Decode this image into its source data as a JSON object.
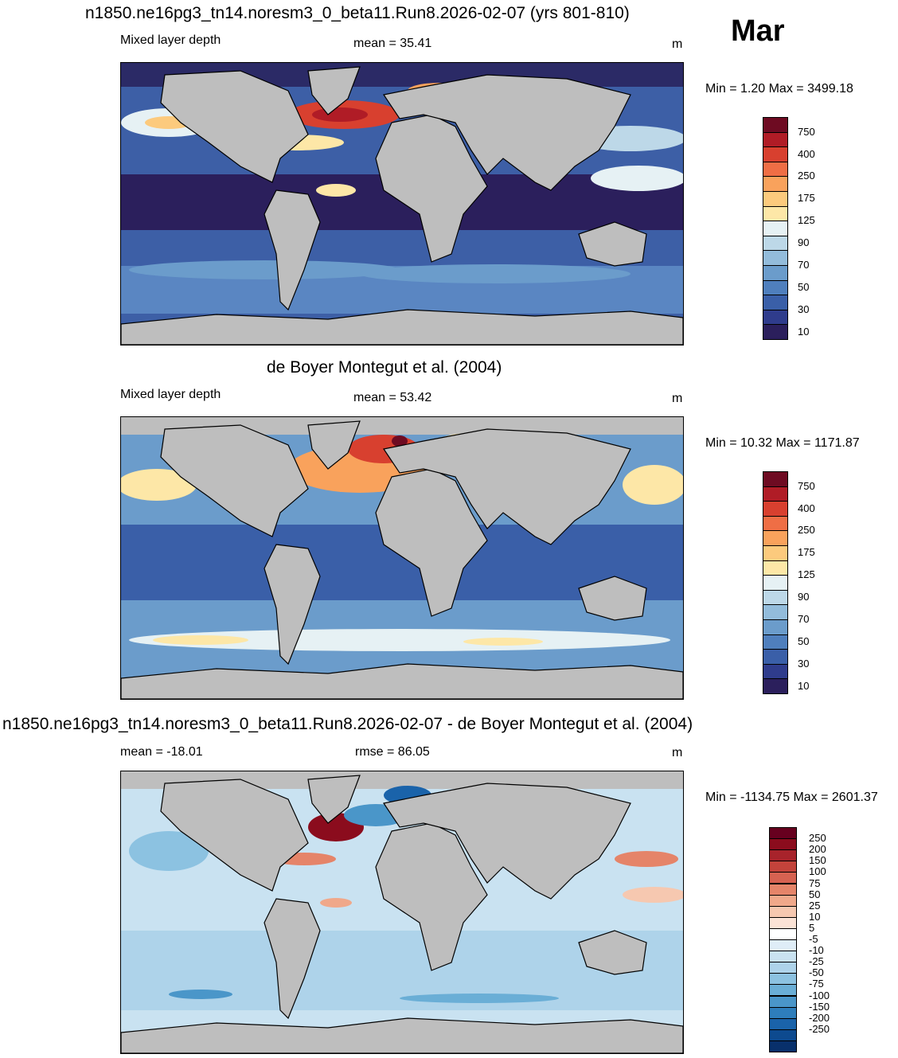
{
  "month": "Mar",
  "unit": "m",
  "panels": [
    {
      "id": "model",
      "title": "n1850.ne16pg3_tn14.noresm3_0_beta11.Run8.2026-02-07 (yrs 801-810)",
      "left_label": "Mixed layer depth",
      "center_label": "mean =  35.41",
      "right_label": "m",
      "minmax": "Min =    1.20 Max = 3499.18",
      "colorbar": {
        "colors": [
          "#2b1f5c",
          "#2f3c8c",
          "#3a5fa8",
          "#4f7fbd",
          "#6b9ccb",
          "#93bcdb",
          "#bdd8e8",
          "#e6f1f4",
          "#fde7a7",
          "#fcca7d",
          "#f9a25c",
          "#ef6e45",
          "#d8402f",
          "#b01c26",
          "#6e0b22"
        ],
        "labels": [
          "750",
          "400",
          "250",
          "175",
          "125",
          "90",
          "70",
          "50",
          "30",
          "10"
        ]
      }
    },
    {
      "id": "obs",
      "title": "de Boyer Montegut et al. (2004)",
      "left_label": "Mixed layer depth",
      "center_label": "mean =  53.42",
      "right_label": "m",
      "minmax": "Min =  10.32 Max = 1171.87",
      "colorbar": {
        "colors": [
          "#2b1f5c",
          "#2f3c8c",
          "#3a5fa8",
          "#4f7fbd",
          "#6b9ccb",
          "#93bcdb",
          "#bdd8e8",
          "#e6f1f4",
          "#fde7a7",
          "#fcca7d",
          "#f9a25c",
          "#ef6e45",
          "#d8402f",
          "#b01c26",
          "#6e0b22"
        ],
        "labels": [
          "750",
          "400",
          "250",
          "175",
          "125",
          "90",
          "70",
          "50",
          "30",
          "10"
        ]
      }
    },
    {
      "id": "diff",
      "title": "n1850.ne16pg3_tn14.noresm3_0_beta11.Run8.2026-02-07 - de Boyer Montegut et al. (2004)",
      "left_label": "mean = -18.01",
      "center_label": "rmse =  86.05",
      "right_label": "m",
      "minmax": "Min = -1134.75 Max = 2601.37",
      "colorbar": {
        "colors": [
          "#08306b",
          "#0d4a8f",
          "#1a63aa",
          "#2e7ebc",
          "#4a96c9",
          "#6aaed6",
          "#8cc2e1",
          "#aed3ea",
          "#c9e2f1",
          "#dfedf7",
          "#ffffff",
          "#fbe3d6",
          "#f6c8b0",
          "#f0a88a",
          "#e58469",
          "#d66251",
          "#c3433b",
          "#a8232b",
          "#8b0c1d",
          "#67001f"
        ],
        "labels": [
          "250",
          "200",
          "150",
          "100",
          "75",
          "50",
          "25",
          "10",
          "5",
          "-5",
          "-10",
          "-25",
          "-50",
          "-75",
          "-100",
          "-150",
          "-200",
          "-250"
        ]
      }
    }
  ],
  "legend_colors": {
    "land": "#bebebe",
    "coast": "#000000"
  }
}
